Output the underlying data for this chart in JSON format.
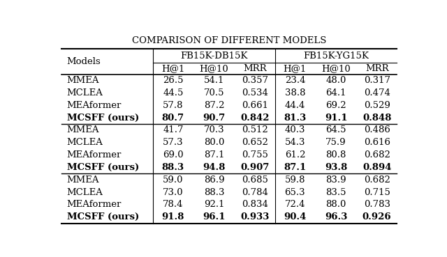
{
  "title": "Comparison of Different Models",
  "col_group_labels": [
    "FB15K-DB15K",
    "FB15K-YG15K"
  ],
  "subheaders": [
    "H@1",
    "H@10",
    "MRR",
    "H@1",
    "H@10",
    "MRR"
  ],
  "row_groups": [
    [
      {
        "model": "MMEA",
        "bold": false,
        "vals": [
          "26.5",
          "54.1",
          "0.357",
          "23.4",
          "48.0",
          "0.317"
        ]
      },
      {
        "model": "MCLEA",
        "bold": false,
        "vals": [
          "44.5",
          "70.5",
          "0.534",
          "38.8",
          "64.1",
          "0.474"
        ]
      },
      {
        "model": "MEAformer",
        "bold": false,
        "vals": [
          "57.8",
          "87.2",
          "0.661",
          "44.4",
          "69.2",
          "0.529"
        ]
      },
      {
        "model": "MCSFF (ours)",
        "bold": true,
        "vals": [
          "80.7",
          "90.7",
          "0.842",
          "81.3",
          "91.1",
          "0.848"
        ]
      }
    ],
    [
      {
        "model": "MMEA",
        "bold": false,
        "vals": [
          "41.7",
          "70.3",
          "0.512",
          "40.3",
          "64.5",
          "0.486"
        ]
      },
      {
        "model": "MCLEA",
        "bold": false,
        "vals": [
          "57.3",
          "80.0",
          "0.652",
          "54.3",
          "75.9",
          "0.616"
        ]
      },
      {
        "model": "MEAformer",
        "bold": false,
        "vals": [
          "69.0",
          "87.1",
          "0.755",
          "61.2",
          "80.8",
          "0.682"
        ]
      },
      {
        "model": "MCSFF (ours)",
        "bold": true,
        "vals": [
          "88.3",
          "94.8",
          "0.907",
          "87.1",
          "93.8",
          "0.894"
        ]
      }
    ],
    [
      {
        "model": "MMEA",
        "bold": false,
        "vals": [
          "59.0",
          "86.9",
          "0.685",
          "59.8",
          "83.9",
          "0.682"
        ]
      },
      {
        "model": "MCLEA",
        "bold": false,
        "vals": [
          "73.0",
          "88.3",
          "0.784",
          "65.3",
          "83.5",
          "0.715"
        ]
      },
      {
        "model": "MEAformer",
        "bold": false,
        "vals": [
          "78.4",
          "92.1",
          "0.834",
          "72.4",
          "88.0",
          "0.783"
        ]
      },
      {
        "model": "MCSFF (ours)",
        "bold": true,
        "vals": [
          "91.8",
          "96.1",
          "0.933",
          "90.4",
          "96.3",
          "0.926"
        ]
      }
    ]
  ],
  "col_widths_rel": [
    2.3,
    1.0,
    1.05,
    1.0,
    1.0,
    1.05,
    1.0
  ],
  "bg_color": "#ffffff",
  "title_fontsize": 9.5,
  "header_fontsize": 9.5,
  "cell_fontsize": 9.5
}
